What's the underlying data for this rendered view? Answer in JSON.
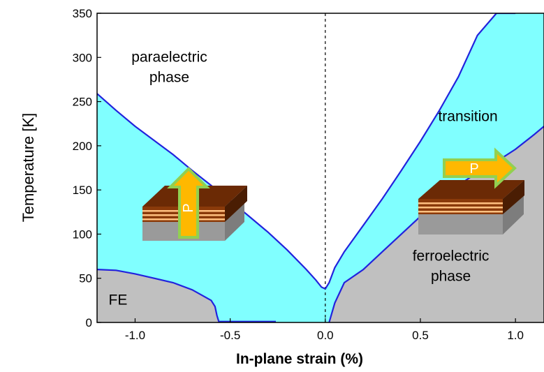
{
  "chart_data": {
    "type": "area",
    "title": "",
    "xlabel": "In-plane strain (%)",
    "ylabel": "Temperature  [K]",
    "xlim": [
      -1.2,
      1.15
    ],
    "ylim": [
      0,
      350
    ],
    "x_ticks": [
      -1.0,
      -0.5,
      0.0,
      0.5,
      1.0
    ],
    "x_tick_labels": [
      "-1.0",
      "-0.5",
      "0.0",
      "0.5",
      "1.0"
    ],
    "y_ticks": [
      0,
      50,
      100,
      150,
      200,
      250,
      300,
      350
    ],
    "y_tick_labels": [
      "0",
      "50",
      "100",
      "150",
      "200",
      "250",
      "300",
      "350"
    ],
    "grid": false,
    "reference_line": {
      "x": 0.0,
      "style": "dashed"
    },
    "colors": {
      "transition": "#80ffff",
      "ferroelectric": "#c0c0c0",
      "boundary": "#2222dd",
      "paraelectric": "#ffffff",
      "film_top": "#6b2a05",
      "film_stripe": "#ffc080",
      "substrate": "#9a9a9a",
      "arrow_fill": "#ffb800",
      "arrow_border": "#92d050"
    },
    "series": [
      {
        "role": "upper-boundary-left",
        "x": [
          -1.2,
          -1.1,
          -1.0,
          -0.9,
          -0.8,
          -0.7,
          -0.6,
          -0.5,
          -0.4,
          -0.3,
          -0.2,
          -0.1,
          -0.05,
          -0.02,
          0.0
        ],
        "y": [
          259,
          240,
          222,
          206,
          190,
          172,
          155,
          138,
          120,
          102,
          82,
          60,
          48,
          40,
          38
        ]
      },
      {
        "role": "upper-boundary-right",
        "x": [
          0.0,
          0.02,
          0.05,
          0.1,
          0.2,
          0.3,
          0.4,
          0.5,
          0.6,
          0.7,
          0.8,
          0.9,
          1.0
        ],
        "y": [
          38,
          45,
          62,
          80,
          110,
          140,
          172,
          205,
          240,
          278,
          325,
          350,
          350
        ]
      },
      {
        "role": "lower-boundary-left",
        "x": [
          -1.2,
          -1.1,
          -1.0,
          -0.9,
          -0.8,
          -0.7,
          -0.65,
          -0.6,
          -0.58,
          -0.57,
          -0.56,
          -0.26
        ],
        "y": [
          60,
          59,
          55,
          50,
          45,
          37,
          31,
          25,
          18,
          8,
          1,
          1
        ]
      },
      {
        "role": "lower-boundary-right",
        "x": [
          0.02,
          0.05,
          0.1,
          0.2,
          0.3,
          0.4,
          0.5,
          0.6,
          0.7,
          0.8,
          0.9,
          1.0,
          1.1,
          1.15
        ],
        "y": [
          0,
          22,
          45,
          60,
          80,
          100,
          120,
          138,
          155,
          170,
          182,
          196,
          213,
          222
        ]
      }
    ],
    "annotations": [
      {
        "name": "paraelectric-label",
        "lines": [
          "paraelectric",
          "phase"
        ],
        "x": -0.82,
        "y": 295
      },
      {
        "name": "transition-label",
        "lines": [
          "transition"
        ],
        "x": 0.75,
        "y": 228
      },
      {
        "name": "ferroelectric-label",
        "lines": [
          "ferroelectric",
          "phase"
        ],
        "x": 0.66,
        "y": 70
      },
      {
        "name": "fe-label",
        "lines": [
          "FE"
        ],
        "x": -1.09,
        "y": 20
      }
    ],
    "insets": [
      {
        "name": "vertical-polarization-inset",
        "arrow_direction": "up",
        "arrow_label": "P"
      },
      {
        "name": "in-plane-polarization-inset",
        "arrow_direction": "right",
        "arrow_label": "P"
      }
    ]
  }
}
